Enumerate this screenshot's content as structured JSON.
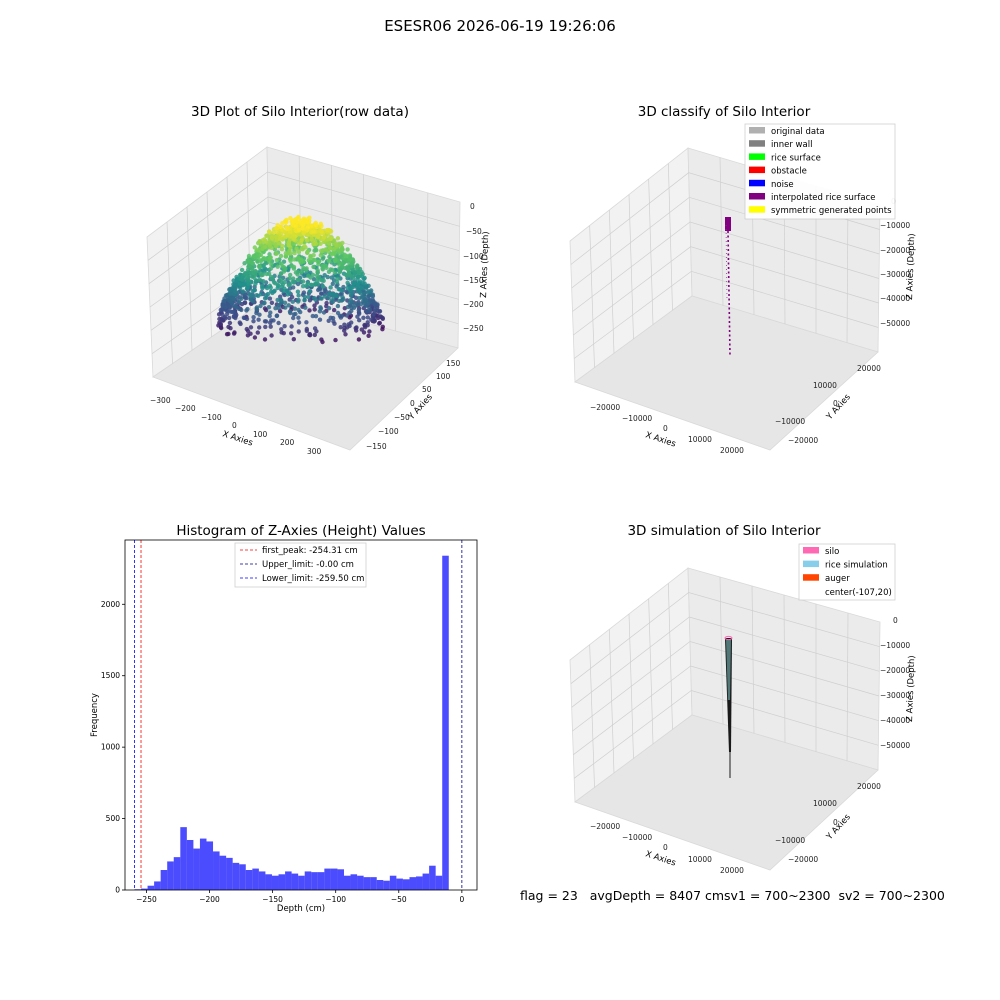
{
  "figure_title": "ESESR06 2026-06-19 19:26:06",
  "footer": {
    "flag": "flag = 23",
    "avg_depth": "avgDepth = 8407 cm",
    "sv1": "sv1 = 700~2300",
    "sv2": "sv2 = 700~2300"
  },
  "panels": {
    "raw": {
      "title": "3D Plot of Silo Interior(row data)",
      "xlabel": "X Axies",
      "ylabel": "Y Axies",
      "zlabel": "Z Axies (Depth)",
      "xticks": [
        "−300",
        "−200",
        "−100",
        "0",
        "100",
        "200",
        "300"
      ],
      "yticks": [
        "150",
        "100",
        "50",
        "0",
        "−50",
        "−100",
        "−150"
      ],
      "zticks": [
        "0",
        "−50",
        "−100",
        "−150",
        "−200",
        "−250"
      ]
    },
    "classify": {
      "title": "3D classify of Silo Interior",
      "xlabel": "X Axies",
      "ylabel": "Y Axies",
      "zlabel": "Z Axies (Depth)",
      "xticks": [
        "−20000",
        "−10000",
        "0",
        "10000",
        "20000"
      ],
      "yticks": [
        "20000",
        "10000",
        "0",
        "−10000",
        "−20000"
      ],
      "zticks": [
        "0",
        "−10000",
        "−20000",
        "−30000",
        "−40000",
        "−50000"
      ],
      "legend": [
        {
          "label": "original data",
          "color": "#b0b0b0"
        },
        {
          "label": "inner wall",
          "color": "#808080"
        },
        {
          "label": "rice surface",
          "color": "#00ff00"
        },
        {
          "label": "obstacle",
          "color": "#ff0000"
        },
        {
          "label": "noise",
          "color": "#0000ff"
        },
        {
          "label": "interpolated rice surface",
          "color": "#800080"
        },
        {
          "label": "symmetric generated points",
          "color": "#ffff00"
        }
      ]
    },
    "simulation": {
      "title": "3D simulation of Silo Interior",
      "xlabel": "X Axies",
      "ylabel": "Y Axies",
      "zlabel": "Z Axies (Depth)",
      "xticks": [
        "−20000",
        "−10000",
        "0",
        "10000",
        "20000"
      ],
      "yticks": [
        "20000",
        "10000",
        "0",
        "−10000",
        "−20000"
      ],
      "zticks": [
        "0",
        "−10000",
        "−20000",
        "−30000",
        "−40000",
        "−50000"
      ],
      "legend": [
        {
          "label": "silo",
          "color": "#ff69b4"
        },
        {
          "label": "rice simulation",
          "color": "#87ceeb"
        },
        {
          "label": "auger",
          "color": "#ff4500"
        },
        {
          "label": "center(-107,20)",
          "color": null
        }
      ]
    }
  },
  "chart_data": [
    {
      "type": "scatter",
      "title": "3D Plot of Silo Interior(row data)",
      "xlabel": "X Axies",
      "ylabel": "Y Axies",
      "zlabel": "Z Axies (Depth)",
      "xlim": [
        -300,
        300
      ],
      "ylim": [
        -150,
        150
      ],
      "zlim": [
        -275,
        0
      ],
      "colormap": "viridis",
      "grid": true
    },
    {
      "type": "scatter",
      "title": "3D classify of Silo Interior",
      "xlabel": "X Axies",
      "ylabel": "Y Axies",
      "zlabel": "Z Axies (Depth)",
      "xlim": [
        -25000,
        25000
      ],
      "ylim": [
        -25000,
        25000
      ],
      "zlim": [
        -55000,
        0
      ],
      "legend_position": "upper right",
      "grid": true
    },
    {
      "type": "histogram",
      "title": "Histogram of Z-Axies (Height) Values",
      "xlabel": "Depth (cm)",
      "ylabel": "Frequency",
      "xlim": [
        -267,
        12
      ],
      "ylim": [
        0,
        2450
      ],
      "xticks": [
        -250,
        -200,
        -150,
        -100,
        -50,
        0
      ],
      "yticks": [
        0,
        500,
        1000,
        1500,
        2000
      ],
      "bar_color": "#0000ff",
      "bin_width": 5.19,
      "first_bin_left": -259.5,
      "counts": [
        5,
        10,
        30,
        60,
        140,
        200,
        230,
        440,
        350,
        290,
        360,
        340,
        270,
        240,
        225,
        190,
        180,
        140,
        150,
        130,
        110,
        100,
        110,
        130,
        115,
        100,
        130,
        125,
        125,
        150,
        150,
        145,
        100,
        110,
        100,
        90,
        90,
        70,
        65,
        100,
        80,
        75,
        90,
        95,
        115,
        170,
        100,
        2340
      ],
      "lines": [
        {
          "name": "first_peak: -254.31 cm",
          "x": -254.31,
          "color": "#ff0000"
        },
        {
          "name": "Upper_limit: -0.00 cm",
          "x": -0.0,
          "color": "#00008b"
        },
        {
          "name": "Lower_limit: -259.50 cm",
          "x": -259.5,
          "color": "#0000ff"
        }
      ],
      "legend_position": "upper center"
    },
    {
      "type": "surface",
      "title": "3D simulation of Silo Interior",
      "xlabel": "X Axies",
      "ylabel": "Y Axies",
      "zlabel": "Z Axies (Depth)",
      "xlim": [
        -25000,
        25000
      ],
      "ylim": [
        -25000,
        25000
      ],
      "zlim": [
        -55000,
        0
      ],
      "legend_position": "upper right",
      "grid": true
    }
  ]
}
